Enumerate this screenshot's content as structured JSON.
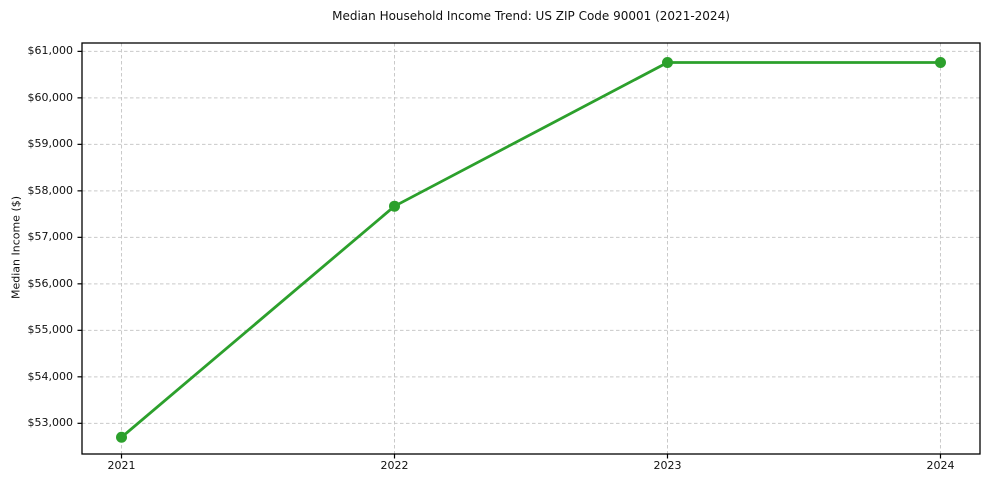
{
  "figure": {
    "background_color": "#ffffff",
    "text_color": "#111111",
    "grid_color": "#c9c9c9",
    "spine_color": "#000000"
  },
  "chart_data": {
    "type": "line",
    "title": "Median Household Income Trend: US ZIP Code 90001 (2021-2024)",
    "xlabel": "",
    "ylabel": "Median Income ($)",
    "x": [
      2021,
      2022,
      2023,
      2024
    ],
    "xtick_labels": [
      "2021",
      "2022",
      "2023",
      "2024"
    ],
    "series": [
      {
        "name": "Median Household Income",
        "values": [
          52700,
          57670,
          60760,
          60760
        ],
        "color": "#2ca02c",
        "marker": "circle",
        "marker_radius": 5.5,
        "line_width": 2.8
      }
    ],
    "yticks": [
      53000,
      54000,
      55000,
      56000,
      57000,
      58000,
      59000,
      60000,
      61000
    ],
    "ytick_labels": [
      "$53,000",
      "$54,000",
      "$55,000",
      "$56,000",
      "$57,000",
      "$58,000",
      "$59,000",
      "$60,000",
      "$61,000"
    ],
    "ylim": [
      52340,
      61180
    ],
    "grid": "dashed, horizontal and vertical",
    "legend": "none"
  }
}
